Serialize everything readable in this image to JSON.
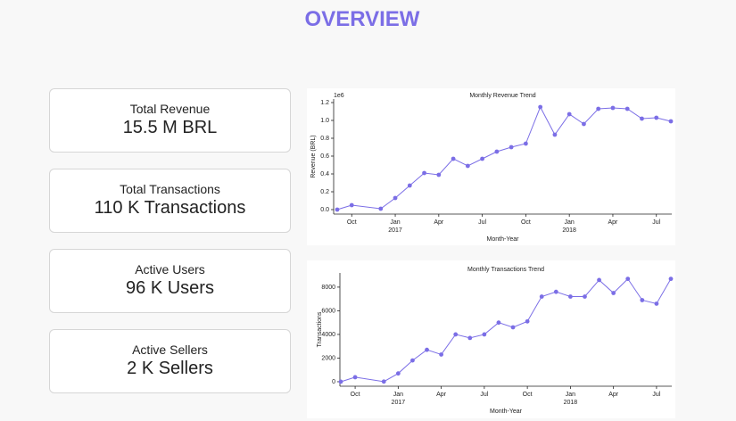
{
  "header": {
    "title": "OVERVIEW"
  },
  "cards": [
    {
      "label": "Total Revenue",
      "value": "15.5 M BRL"
    },
    {
      "label": "Total Transactions",
      "value": "110 K Transactions"
    },
    {
      "label": "Active Users",
      "value": "96 K Users"
    },
    {
      "label": "Active Sellers",
      "value": "2 K Sellers"
    }
  ],
  "chart_data": [
    {
      "type": "line",
      "title": "Monthly Revenue Trend",
      "x_label": "Month-Year",
      "y_label": "Revenue (BRL)",
      "y_offset_label": "1e6",
      "x": [
        "2016-09",
        "2016-10",
        "2016-12",
        "2017-01",
        "2017-02",
        "2017-03",
        "2017-04",
        "2017-05",
        "2017-06",
        "2017-07",
        "2017-08",
        "2017-09",
        "2017-10",
        "2017-11",
        "2017-12",
        "2018-01",
        "2018-02",
        "2018-03",
        "2018-04",
        "2018-05",
        "2018-06",
        "2018-07",
        "2018-08"
      ],
      "series": [
        {
          "name": "Revenue",
          "color": "#7b6ee6",
          "values": [
            0.0,
            0.05,
            0.01,
            0.13,
            0.27,
            0.41,
            0.39,
            0.57,
            0.49,
            0.57,
            0.65,
            0.7,
            0.74,
            1.15,
            0.84,
            1.07,
            0.96,
            1.13,
            1.14,
            1.13,
            1.02,
            1.03,
            0.99
          ]
        }
      ],
      "xlim": [
        "2016-09",
        "2018-08"
      ],
      "xticks": [
        {
          "value": "2016-10",
          "label": "Oct"
        },
        {
          "value": "2017-01",
          "label": "Jan",
          "sublabel": "2017"
        },
        {
          "value": "2017-04",
          "label": "Apr"
        },
        {
          "value": "2017-07",
          "label": "Jul"
        },
        {
          "value": "2017-10",
          "label": "Oct"
        },
        {
          "value": "2018-01",
          "label": "Jan",
          "sublabel": "2018"
        },
        {
          "value": "2018-04",
          "label": "Apr"
        },
        {
          "value": "2018-07",
          "label": "Jul"
        }
      ],
      "ylim": [
        -0.05,
        1.24
      ],
      "yticks": [
        {
          "value": 0,
          "label": "0.0"
        },
        0.2,
        0.4,
        0.6,
        0.8,
        {
          "value": 1,
          "label": "1.0"
        },
        1.2
      ]
    },
    {
      "type": "line",
      "title": "Monthly Transactions Trend",
      "x_label": "Month-Year",
      "y_label": "Transactions",
      "x": [
        "2016-09",
        "2016-10",
        "2016-12",
        "2017-01",
        "2017-02",
        "2017-03",
        "2017-04",
        "2017-05",
        "2017-06",
        "2017-07",
        "2017-08",
        "2017-09",
        "2017-10",
        "2017-11",
        "2017-12",
        "2018-01",
        "2018-02",
        "2018-03",
        "2018-04",
        "2018-05",
        "2018-06",
        "2018-07",
        "2018-08"
      ],
      "series": [
        {
          "name": "Transactions",
          "color": "#7b6ee6",
          "values": [
            0,
            380,
            10,
            700,
            1800,
            2700,
            2300,
            4000,
            3700,
            4000,
            5000,
            4600,
            5100,
            7200,
            7600,
            7200,
            7200,
            8600,
            7500,
            8700,
            6900,
            6600,
            8700
          ]
        }
      ],
      "xlim": [
        "2016-09",
        "2018-08"
      ],
      "xticks": [
        {
          "value": "2016-10",
          "label": "Oct"
        },
        {
          "value": "2017-01",
          "label": "Jan",
          "sublabel": "2017"
        },
        {
          "value": "2017-04",
          "label": "Apr"
        },
        {
          "value": "2017-07",
          "label": "Jul"
        },
        {
          "value": "2017-10",
          "label": "Oct"
        },
        {
          "value": "2018-01",
          "label": "Jan",
          "sublabel": "2018"
        },
        {
          "value": "2018-04",
          "label": "Apr"
        },
        {
          "value": "2018-07",
          "label": "Jul"
        }
      ],
      "ylim": [
        -380,
        9200
      ],
      "yticks": [
        0,
        2000,
        4000,
        6000,
        8000
      ]
    }
  ]
}
